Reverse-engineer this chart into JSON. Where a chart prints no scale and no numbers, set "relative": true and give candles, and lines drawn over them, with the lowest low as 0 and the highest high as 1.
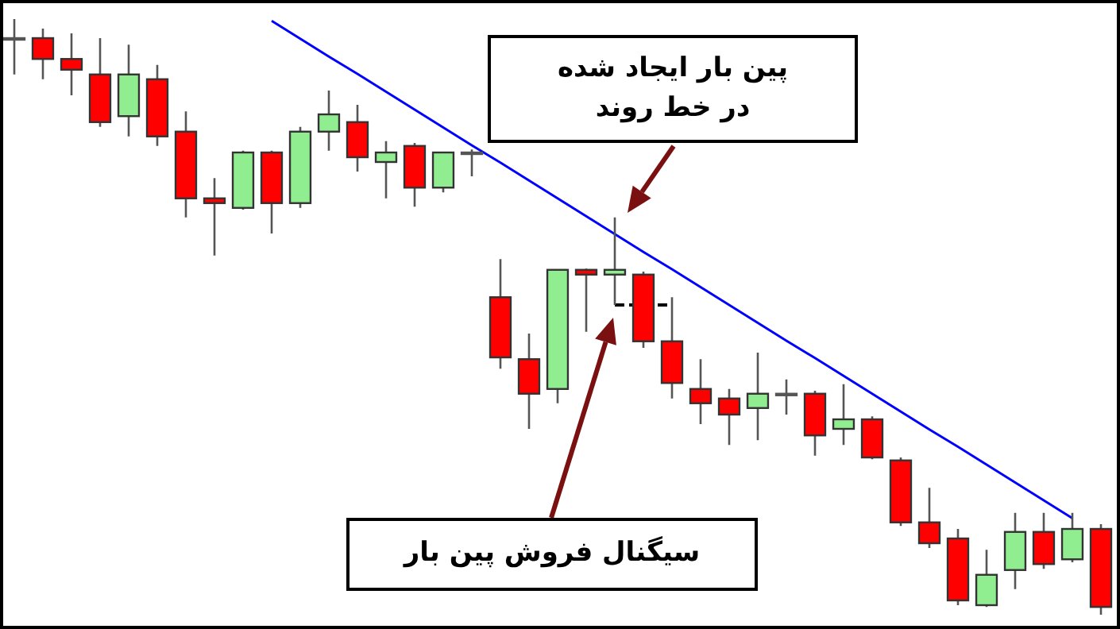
{
  "chart_data": {
    "type": "candlestick",
    "relative": true,
    "categories": [
      null,
      null,
      null,
      null,
      null,
      null,
      null,
      null,
      null,
      null,
      null,
      null,
      null,
      null,
      null,
      null,
      null,
      null,
      null,
      null,
      null,
      null,
      null,
      null,
      null,
      null,
      null,
      null,
      null,
      null,
      null,
      null,
      null,
      null,
      null,
      null,
      null,
      null,
      null
    ],
    "ohlc": [
      [
        0.968,
        1.0,
        0.907,
        0.968
      ],
      [
        0.968,
        0.984,
        0.899,
        0.933
      ],
      [
        0.933,
        0.976,
        0.872,
        0.915
      ],
      [
        0.907,
        0.968,
        0.819,
        0.827
      ],
      [
        0.837,
        0.957,
        0.803,
        0.907
      ],
      [
        0.899,
        0.923,
        0.787,
        0.803
      ],
      [
        0.811,
        0.845,
        0.667,
        0.699
      ],
      [
        0.699,
        0.733,
        0.603,
        0.691
      ],
      [
        0.683,
        0.779,
        0.68,
        0.776
      ],
      [
        0.776,
        0.779,
        0.64,
        0.691
      ],
      [
        0.691,
        0.819,
        0.683,
        0.811
      ],
      [
        0.811,
        0.88,
        0.779,
        0.84
      ],
      [
        0.827,
        0.856,
        0.744,
        0.768
      ],
      [
        0.76,
        0.795,
        0.699,
        0.776
      ],
      [
        0.787,
        0.792,
        0.685,
        0.717
      ],
      [
        0.717,
        0.776,
        0.709,
        0.776
      ],
      [
        0.776,
        0.781,
        0.736,
        0.776
      ],
      [
        0.533,
        0.597,
        0.413,
        0.432
      ],
      [
        0.429,
        0.472,
        0.312,
        0.371
      ],
      [
        0.379,
        0.579,
        0.355,
        0.579
      ],
      [
        0.579,
        0.581,
        0.475,
        0.571
      ],
      [
        0.571,
        0.667,
        0.52,
        0.579
      ],
      [
        0.571,
        0.576,
        0.448,
        0.459
      ],
      [
        0.459,
        0.533,
        0.363,
        0.389
      ],
      [
        0.379,
        0.429,
        0.32,
        0.355
      ],
      [
        0.363,
        0.379,
        0.285,
        0.336
      ],
      [
        0.347,
        0.44,
        0.293,
        0.371
      ],
      [
        0.371,
        0.395,
        0.336,
        0.371
      ],
      [
        0.371,
        0.376,
        0.267,
        0.301
      ],
      [
        0.312,
        0.387,
        0.285,
        0.328
      ],
      [
        0.328,
        0.333,
        0.261,
        0.264
      ],
      [
        0.259,
        0.264,
        0.149,
        0.155
      ],
      [
        0.155,
        0.213,
        0.112,
        0.12
      ],
      [
        0.128,
        0.144,
        0.016,
        0.024
      ],
      [
        0.016,
        0.109,
        0.013,
        0.067
      ],
      [
        0.075,
        0.171,
        0.043,
        0.139
      ],
      [
        0.139,
        0.171,
        0.077,
        0.085
      ],
      [
        0.093,
        0.171,
        0.088,
        0.144
      ],
      [
        0.144,
        0.152,
        0.0,
        0.013
      ]
    ],
    "colors": [
      "#ff0000",
      "#ff0000",
      "#ff0000",
      "#ff0000",
      "#90ee90",
      "#ff0000",
      "#ff0000",
      "#ff0000",
      "#90ee90",
      "#ff0000",
      "#90ee90",
      "#90ee90",
      "#ff0000",
      "#90ee90",
      "#ff0000",
      "#90ee90",
      "#ff0000",
      "#ff0000",
      "#ff0000",
      "#90ee90",
      "#ff0000",
      "#90ee90",
      "#ff0000",
      "#ff0000",
      "#ff0000",
      "#ff0000",
      "#90ee90",
      "#ff0000",
      "#ff0000",
      "#90ee90",
      "#ff0000",
      "#ff0000",
      "#ff0000",
      "#ff0000",
      "#90ee90",
      "#90ee90",
      "#ff0000",
      "#90ee90",
      "#ff0000"
    ],
    "series": [
      {
        "type": "line",
        "values": [
          null,
          null,
          null,
          null,
          null,
          null,
          null,
          null,
          null,
          0.997,
          0.967,
          0.937,
          0.908,
          0.878,
          0.848,
          0.818,
          0.788,
          0.759,
          0.729,
          0.699,
          0.669,
          0.639,
          0.609,
          0.58,
          0.55,
          0.52,
          0.49,
          0.46,
          0.431,
          0.401,
          0.371,
          0.341,
          0.311,
          0.282,
          0.252,
          0.222,
          0.192,
          0.162,
          null
        ],
        "color": "#0000ff",
        "line_style": "solid"
      },
      {
        "type": "line",
        "values": [
          null,
          null,
          null,
          null,
          null,
          null,
          null,
          null,
          null,
          null,
          null,
          null,
          null,
          null,
          null,
          null,
          null,
          null,
          null,
          null,
          null,
          0.52,
          0.52,
          0.52,
          null,
          null,
          null,
          null,
          null,
          null,
          null,
          null,
          null,
          null,
          null,
          null,
          null,
          null,
          null
        ],
        "color": "#000000",
        "line_style": "dashed"
      }
    ],
    "annotations": [
      "پین بار ایجاد شده در خط روند",
      "سیگنال فروش پین بار"
    ]
  }
}
